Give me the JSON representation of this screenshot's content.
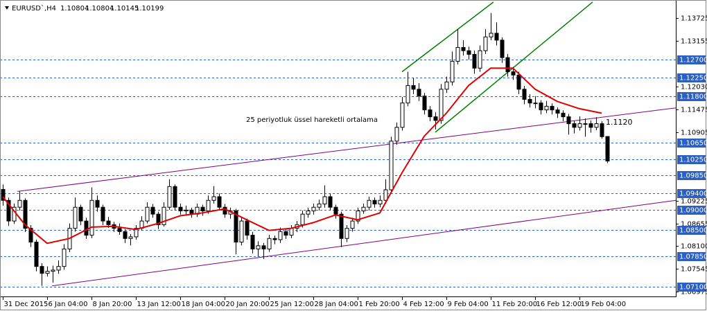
{
  "chart_data": {
    "type": "candlestick",
    "symbol": "EURUSD`,H4",
    "up_color": "#ffffff",
    "down_color": "#000000",
    "outline_color": "#000000",
    "xlim": [
      -0.5,
      121.375
    ],
    "ylim": [
      1.0686,
      1.1417
    ],
    "xticks": [
      {
        "value": 0,
        "label": "31 Dec 2015"
      },
      {
        "value": 8,
        "label": "6 Jan 04:00"
      },
      {
        "value": 16,
        "label": "8 Jan 20:00"
      },
      {
        "value": 24,
        "label": "13 Jan 12:00"
      },
      {
        "value": 32,
        "label": "18 Jan 04:00"
      },
      {
        "value": 40,
        "label": "20 Jan 20:00"
      },
      {
        "value": 48,
        "label": "25 Jan 12:00"
      },
      {
        "value": 56,
        "label": "28 Jan 04:00"
      },
      {
        "value": 64,
        "label": "1 Feb 20:00"
      },
      {
        "value": 72,
        "label": "4 Feb 12:00"
      },
      {
        "value": 80,
        "label": "9 Feb 04:00"
      },
      {
        "value": 88,
        "label": "11 Feb 20:00"
      },
      {
        "value": 96,
        "label": "16 Feb 12:00"
      },
      {
        "value": 104,
        "label": "19 Feb 04:00"
      }
    ],
    "yticks": [
      1.13725,
      1.13155,
      {
        "value": 1.1203,
        "label": "1.12030"
      },
      1.11475,
      1.10905,
      1.09225,
      1.08655,
      {
        "value": 1.081,
        "label": "1.08100"
      },
      1.07545,
      1.06975
    ],
    "levels": [
      {
        "value": 1.127,
        "label": "1.12700"
      },
      {
        "value": 1.1225,
        "label": "1.12250"
      },
      {
        "value": 1.118,
        "label": "1.11800"
      },
      {
        "value": 1.1065,
        "label": "1.10650"
      },
      {
        "value": 1.1025,
        "label": "1.10250"
      },
      {
        "value": 1.0985,
        "label": "1.09850"
      },
      {
        "value": 1.094,
        "label": "1.09400"
      },
      {
        "value": 1.09,
        "label": "1.09000"
      },
      {
        "value": 1.085,
        "label": "1.08500"
      },
      {
        "value": 1.0785,
        "label": "1.07850"
      },
      {
        "value": 1.071,
        "label": "1.07100"
      }
    ],
    "level_color": "#2d5fbf",
    "ohlc": [
      [
        1.095,
        1.0962,
        1.091,
        1.0923
      ],
      [
        1.0923,
        1.093,
        1.086,
        1.0872
      ],
      [
        1.0872,
        1.0915,
        1.0865,
        1.0906
      ],
      [
        1.0906,
        1.0945,
        1.0898,
        1.0923
      ],
      [
        1.0923,
        1.0928,
        1.0845,
        1.0854
      ],
      [
        1.0854,
        1.0862,
        1.0808,
        1.082
      ],
      [
        1.082,
        1.0826,
        1.0748,
        1.076
      ],
      [
        1.076,
        1.0768,
        1.0712,
        1.0743
      ],
      [
        1.0743,
        1.076,
        1.0735,
        1.0748
      ],
      [
        1.0748,
        1.0762,
        1.072,
        1.0751
      ],
      [
        1.0751,
        1.0775,
        1.0742,
        1.076
      ],
      [
        1.076,
        1.0815,
        1.0752,
        1.0803
      ],
      [
        1.0803,
        1.0866,
        1.0795,
        1.0854
      ],
      [
        1.0854,
        1.093,
        1.0846,
        1.0906
      ],
      [
        1.0906,
        1.0912,
        1.0862,
        1.0872
      ],
      [
        1.0872,
        1.088,
        1.0828,
        1.0837
      ],
      [
        1.0837,
        1.0955,
        1.083,
        1.0923
      ],
      [
        1.0923,
        1.0935,
        1.0895,
        1.0906
      ],
      [
        1.0906,
        1.0912,
        1.0862,
        1.0872
      ],
      [
        1.0872,
        1.0882,
        1.0855,
        1.0863
      ],
      [
        1.0863,
        1.087,
        1.0845,
        1.0854
      ],
      [
        1.0854,
        1.0866,
        1.0838,
        1.0846
      ],
      [
        1.0846,
        1.0852,
        1.0818,
        1.0829
      ],
      [
        1.0829,
        1.084,
        1.0812,
        1.0833
      ],
      [
        1.0833,
        1.0862,
        1.0826,
        1.0854
      ],
      [
        1.0854,
        1.0884,
        1.0848,
        1.0872
      ],
      [
        1.0872,
        1.0918,
        1.0866,
        1.0906
      ],
      [
        1.0906,
        1.0914,
        1.088,
        1.0889
      ],
      [
        1.0889,
        1.0895,
        1.0852,
        1.0863
      ],
      [
        1.0863,
        1.0918,
        1.0858,
        1.0906
      ],
      [
        1.0906,
        1.0975,
        1.09,
        1.0957
      ],
      [
        1.0957,
        1.0962,
        1.0898,
        1.0906
      ],
      [
        1.0906,
        1.0915,
        1.0888,
        1.0897
      ],
      [
        1.0897,
        1.091,
        1.0885,
        1.0899
      ],
      [
        1.0899,
        1.0905,
        1.088,
        1.0889
      ],
      [
        1.0889,
        1.0915,
        1.0882,
        1.0906
      ],
      [
        1.0906,
        1.0912,
        1.0885,
        1.0897
      ],
      [
        1.0897,
        1.0935,
        1.089,
        1.0923
      ],
      [
        1.0923,
        1.0958,
        1.0915,
        1.0932
      ],
      [
        1.0932,
        1.094,
        1.0898,
        1.0906
      ],
      [
        1.0906,
        1.0914,
        1.088,
        1.0889
      ],
      [
        1.0889,
        1.0905,
        1.0878,
        1.0897
      ],
      [
        1.0897,
        1.0902,
        1.079,
        1.082
      ],
      [
        1.082,
        1.0882,
        1.0812,
        1.0872
      ],
      [
        1.0872,
        1.0878,
        1.0826,
        1.0837
      ],
      [
        1.0837,
        1.0845,
        1.0792,
        1.0803
      ],
      [
        1.0803,
        1.0822,
        1.0785,
        1.0811
      ],
      [
        1.0811,
        1.0818,
        1.0778,
        1.0803
      ],
      [
        1.0803,
        1.0838,
        1.0796,
        1.0829
      ],
      [
        1.0829,
        1.0836,
        1.0815,
        1.0826
      ],
      [
        1.0826,
        1.0856,
        1.0818,
        1.0846
      ],
      [
        1.0846,
        1.0852,
        1.0828,
        1.0837
      ],
      [
        1.0837,
        1.0862,
        1.083,
        1.0854
      ],
      [
        1.0854,
        1.0872,
        1.0845,
        1.0863
      ],
      [
        1.0863,
        1.0898,
        1.0856,
        1.0889
      ],
      [
        1.0889,
        1.0905,
        1.088,
        1.0897
      ],
      [
        1.0897,
        1.0915,
        1.0888,
        1.0906
      ],
      [
        1.0906,
        1.0925,
        1.0898,
        1.0914
      ],
      [
        1.0914,
        1.096,
        1.0905,
        1.0932
      ],
      [
        1.0932,
        1.094,
        1.0898,
        1.0906
      ],
      [
        1.0906,
        1.0912,
        1.0878,
        1.0889
      ],
      [
        1.0889,
        1.0895,
        1.0808,
        1.0829
      ],
      [
        1.0829,
        1.0862,
        1.082,
        1.0854
      ],
      [
        1.0854,
        1.088,
        1.0846,
        1.0872
      ],
      [
        1.0872,
        1.0905,
        1.0865,
        1.0897
      ],
      [
        1.0897,
        1.0915,
        1.089,
        1.0906
      ],
      [
        1.0906,
        1.0932,
        1.0898,
        1.0923
      ],
      [
        1.0923,
        1.093,
        1.0905,
        1.0914
      ],
      [
        1.0914,
        1.0935,
        1.0906,
        1.0923
      ],
      [
        1.0923,
        1.0975,
        1.0915,
        1.0949
      ],
      [
        1.0949,
        1.108,
        1.0942,
        1.1069
      ],
      [
        1.1069,
        1.1115,
        1.106,
        1.1103
      ],
      [
        1.1103,
        1.1178,
        1.1095,
        1.1163
      ],
      [
        1.1163,
        1.124,
        1.1155,
        1.1206
      ],
      [
        1.1206,
        1.1225,
        1.1185,
        1.1197
      ],
      [
        1.1197,
        1.1212,
        1.1168,
        1.118
      ],
      [
        1.118,
        1.1188,
        1.1135,
        1.1146
      ],
      [
        1.1146,
        1.1155,
        1.1118,
        1.1129
      ],
      [
        1.1129,
        1.114,
        1.1098,
        1.112
      ],
      [
        1.112,
        1.121,
        1.1112,
        1.1197
      ],
      [
        1.1197,
        1.1228,
        1.1188,
        1.1215
      ],
      [
        1.1215,
        1.129,
        1.1206,
        1.1266
      ],
      [
        1.1266,
        1.1345,
        1.1258,
        1.13
      ],
      [
        1.13,
        1.1318,
        1.128,
        1.1292
      ],
      [
        1.1292,
        1.1302,
        1.127,
        1.1283
      ],
      [
        1.1283,
        1.1292,
        1.1235,
        1.1249
      ],
      [
        1.1249,
        1.1305,
        1.124,
        1.1292
      ],
      [
        1.1292,
        1.1345,
        1.1284,
        1.1326
      ],
      [
        1.1326,
        1.1385,
        1.1318,
        1.1335
      ],
      [
        1.1335,
        1.1362,
        1.1305,
        1.1318
      ],
      [
        1.1318,
        1.1325,
        1.1262,
        1.1275
      ],
      [
        1.1275,
        1.1284,
        1.1228,
        1.124
      ],
      [
        1.124,
        1.1252,
        1.122,
        1.1232
      ],
      [
        1.1232,
        1.124,
        1.1185,
        1.1197
      ],
      [
        1.1197,
        1.1205,
        1.116,
        1.1172
      ],
      [
        1.1172,
        1.1185,
        1.1152,
        1.1163
      ],
      [
        1.1163,
        1.118,
        1.115,
        1.1163
      ],
      [
        1.1163,
        1.117,
        1.1135,
        1.1146
      ],
      [
        1.1146,
        1.1168,
        1.1138,
        1.1155
      ],
      [
        1.1155,
        1.1162,
        1.1135,
        1.1146
      ],
      [
        1.1146,
        1.1152,
        1.1126,
        1.1138
      ],
      [
        1.1138,
        1.1145,
        1.1118,
        1.1129
      ],
      [
        1.1129,
        1.1136,
        1.1085,
        1.1112
      ],
      [
        1.1112,
        1.112,
        1.1088,
        1.1103
      ],
      [
        1.1103,
        1.113,
        1.1095,
        1.1112
      ],
      [
        1.1112,
        1.1125,
        1.108,
        1.1112
      ],
      [
        1.1112,
        1.112,
        1.109,
        1.1103
      ],
      [
        1.1103,
        1.1128,
        1.1096,
        1.1112
      ],
      [
        1.1112,
        1.1118,
        1.1075,
        1.108
      ],
      [
        1.10804,
        1.10804,
        1.10145,
        1.10199
      ]
    ],
    "ema": {
      "color": "#e00000",
      "x": [
        0,
        4,
        8,
        12,
        16,
        20,
        24,
        28,
        32,
        36,
        40,
        44,
        48,
        52,
        56,
        60,
        64,
        68,
        72,
        76,
        80,
        84,
        88,
        92,
        96,
        100,
        104,
        108
      ],
      "values": [
        1.0932,
        1.0863,
        1.0817,
        1.0829,
        1.0857,
        1.0859,
        1.0851,
        1.0866,
        1.0885,
        1.0892,
        1.0902,
        1.0875,
        1.0849,
        1.0854,
        1.0868,
        1.0887,
        1.0875,
        1.0892,
        1.0991,
        1.1081,
        1.1138,
        1.1206,
        1.1249,
        1.1249,
        1.1197,
        1.1167,
        1.1149,
        1.1138
      ]
    },
    "trendlines": [
      {
        "color": "#800080",
        "x": [
          2.625,
          121.375
        ],
        "values": [
          1.0945,
          1.1151
        ]
      },
      {
        "color": "#800080",
        "x": [
          8.875,
          121.375
        ],
        "values": [
          1.0712,
          1.0923
        ]
      },
      {
        "color": "#008000",
        "x": [
          72,
          88.5
        ],
        "values": [
          1.124,
          1.1412
        ]
      },
      {
        "color": "#008000",
        "x": [
          78,
          106.375
        ],
        "values": [
          1.1091,
          1.1412
        ]
      }
    ],
    "annotations": [
      "25 periyotluk üssel hareketli ortalama",
      "1.1120"
    ]
  }
}
